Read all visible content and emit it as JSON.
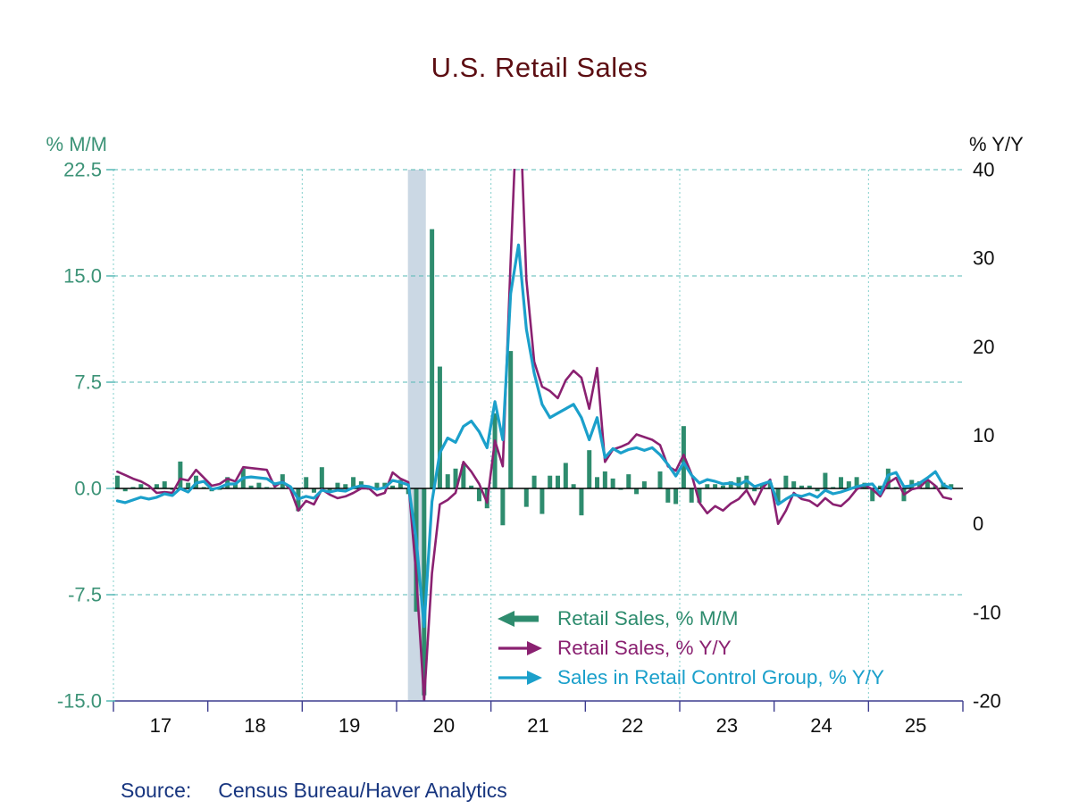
{
  "title": "U.S. Retail Sales",
  "source": {
    "label": "Source:",
    "text": "Census Bureau/Haver Analytics"
  },
  "left_axis_unit": "% M/M",
  "right_axis_unit": "% Y/Y",
  "colors": {
    "title": "#5C0D12",
    "source": "#17357F",
    "left_axis_text": "#3C9377",
    "right_axis_text": "#111111",
    "x_axis_text": "#111111",
    "axis_spine": "#3D3D8F",
    "grid_horizontal": "#55B9B5",
    "grid_vertical": "#82CFCB",
    "zero_line": "#000000",
    "bar_green": "#2E8C6E",
    "line_purple": "#8A2171",
    "line_teal": "#1BA0CB",
    "recession_band": "#CBD8E4"
  },
  "chart_data": {
    "type": "mixed",
    "title": "U.S. Retail Sales",
    "frequency": "monthly",
    "x_start": "2017-01",
    "x_end": "2025-11",
    "x_domain": [
      2017.0,
      2026.0
    ],
    "x_tick_years": [
      2017,
      2018,
      2019,
      2020,
      2021,
      2022,
      2023,
      2024,
      2025,
      2026
    ],
    "x_tick_labels": [
      "17",
      "18",
      "19",
      "20",
      "21",
      "22",
      "23",
      "24",
      "25"
    ],
    "x_grid_years": [
      2017,
      2019,
      2021,
      2023,
      2025
    ],
    "left_ylabel": "% M/M",
    "right_ylabel": "% Y/Y",
    "left_ylim": [
      -15.0,
      22.5
    ],
    "right_ylim": [
      -20,
      40
    ],
    "left_yticks": [
      22.5,
      15.0,
      7.5,
      0.0,
      -7.5,
      -15.0
    ],
    "left_ytick_labels": [
      "22.5",
      "15.0",
      "7.5",
      "0.0",
      "-7.5",
      "-15.0"
    ],
    "left_grid_values": [
      22.5,
      15.0,
      7.5,
      -7.5
    ],
    "right_yticks": [
      40,
      30,
      20,
      10,
      0,
      -10,
      -20
    ],
    "right_ytick_labels": [
      "40",
      "30",
      "20",
      "10",
      "0",
      "-10",
      "-20"
    ],
    "recession_band": {
      "x_start": 2020.12,
      "x_end": 2020.31,
      "label": "recession-shading"
    },
    "series": [
      {
        "name": "Retail Sales, % M/M",
        "type": "bar",
        "axis": "left",
        "color": "#2E8C6E",
        "values": [
          0.9,
          -0.2,
          0.1,
          0.3,
          0.0,
          0.3,
          0.5,
          -0.1,
          1.9,
          0.4,
          0.9,
          0.1,
          -0.2,
          -0.1,
          0.8,
          0.4,
          1.4,
          0.2,
          0.4,
          0.1,
          0.0,
          1.0,
          0.1,
          -1.6,
          0.8,
          -0.3,
          1.5,
          -0.3,
          0.4,
          0.3,
          0.8,
          0.5,
          -0.1,
          0.4,
          0.4,
          0.2,
          0.6,
          -0.4,
          -8.7,
          -14.6,
          18.3,
          8.6,
          1.0,
          1.4,
          1.7,
          0.2,
          -0.9,
          -1.4,
          5.3,
          -2.6,
          9.7,
          0.0,
          -1.3,
          0.9,
          -1.8,
          0.9,
          0.9,
          1.8,
          0.3,
          -1.9,
          2.7,
          0.8,
          1.2,
          0.7,
          -0.1,
          1.0,
          -0.4,
          0.5,
          0.0,
          1.2,
          -1.0,
          -1.1,
          4.4,
          -1.0,
          -1.0,
          0.3,
          0.3,
          0.2,
          0.5,
          0.8,
          0.9,
          -0.2,
          0.3,
          0.4,
          -1.1,
          0.9,
          0.5,
          0.2,
          0.2,
          -0.2,
          1.1,
          0.1,
          0.8,
          0.5,
          0.8,
          0.4,
          -0.9,
          0.2,
          1.4,
          0.1,
          -0.9,
          0.6,
          0.5,
          0.6,
          0.2,
          0.4,
          0.3
        ]
      },
      {
        "name": "Retail Sales, % Y/Y",
        "type": "line",
        "axis": "right",
        "color": "#8A2171",
        "values": [
          5.9,
          5.5,
          5.1,
          4.8,
          4.3,
          3.5,
          3.6,
          3.5,
          5.1,
          4.9,
          6.1,
          5.2,
          4.3,
          4.5,
          5.1,
          4.8,
          6.4,
          6.3,
          6.2,
          6.1,
          4.2,
          4.8,
          3.9,
          1.5,
          2.6,
          2.2,
          3.9,
          3.3,
          2.9,
          3.1,
          3.5,
          4.0,
          4.0,
          3.2,
          3.5,
          5.8,
          5.1,
          4.7,
          -5.8,
          -19.9,
          -5.6,
          2.2,
          2.7,
          3.5,
          7.0,
          5.9,
          4.5,
          2.4,
          9.4,
          6.5,
          29.7,
          51.2,
          27.6,
          18.3,
          15.5,
          15.0,
          14.2,
          16.2,
          17.3,
          16.5,
          13.0,
          17.6,
          7.0,
          8.4,
          8.7,
          9.1,
          10.1,
          9.8,
          9.5,
          8.9,
          6.5,
          6.0,
          7.8,
          5.6,
          2.4,
          1.2,
          2.0,
          1.5,
          2.3,
          2.8,
          3.8,
          2.2,
          4.0,
          5.0,
          0.0,
          1.5,
          3.5,
          2.8,
          2.6,
          2.0,
          2.9,
          2.2,
          2.0,
          2.8,
          3.9,
          4.4,
          3.9,
          3.1,
          4.6,
          5.2,
          3.3,
          3.9,
          4.1,
          5.0,
          4.3,
          3.0,
          2.8
        ]
      },
      {
        "name": "Sales in Retail Control Group, % Y/Y",
        "type": "line",
        "axis": "right",
        "color": "#1BA0CB",
        "values": [
          2.6,
          2.4,
          2.7,
          3.0,
          2.8,
          3.0,
          3.4,
          3.2,
          4.0,
          3.6,
          4.6,
          4.8,
          3.9,
          4.1,
          4.5,
          4.5,
          5.2,
          5.3,
          5.2,
          5.1,
          4.5,
          4.7,
          4.2,
          2.8,
          3.1,
          2.9,
          3.8,
          3.6,
          3.8,
          3.7,
          4.1,
          4.3,
          4.2,
          3.9,
          4.1,
          4.9,
          4.7,
          4.4,
          -1.8,
          -11.6,
          2.5,
          8.0,
          9.7,
          9.2,
          11.0,
          11.6,
          10.4,
          8.6,
          13.8,
          9.5,
          26.0,
          31.5,
          22.0,
          17.0,
          13.5,
          12.0,
          12.5,
          13.0,
          13.5,
          12.0,
          9.5,
          12.0,
          7.5,
          8.5,
          8.0,
          8.4,
          8.6,
          8.3,
          8.6,
          7.8,
          6.7,
          5.4,
          6.9,
          5.5,
          4.6,
          5.0,
          4.8,
          4.5,
          4.6,
          4.4,
          4.9,
          4.2,
          4.5,
          4.8,
          2.2,
          2.8,
          3.3,
          3.1,
          3.4,
          3.0,
          3.8,
          3.4,
          3.6,
          3.9,
          4.2,
          4.4,
          4.5,
          3.4,
          5.5,
          5.8,
          4.2,
          4.3,
          4.6,
          5.2,
          5.9,
          4.4,
          4.0
        ]
      }
    ]
  }
}
